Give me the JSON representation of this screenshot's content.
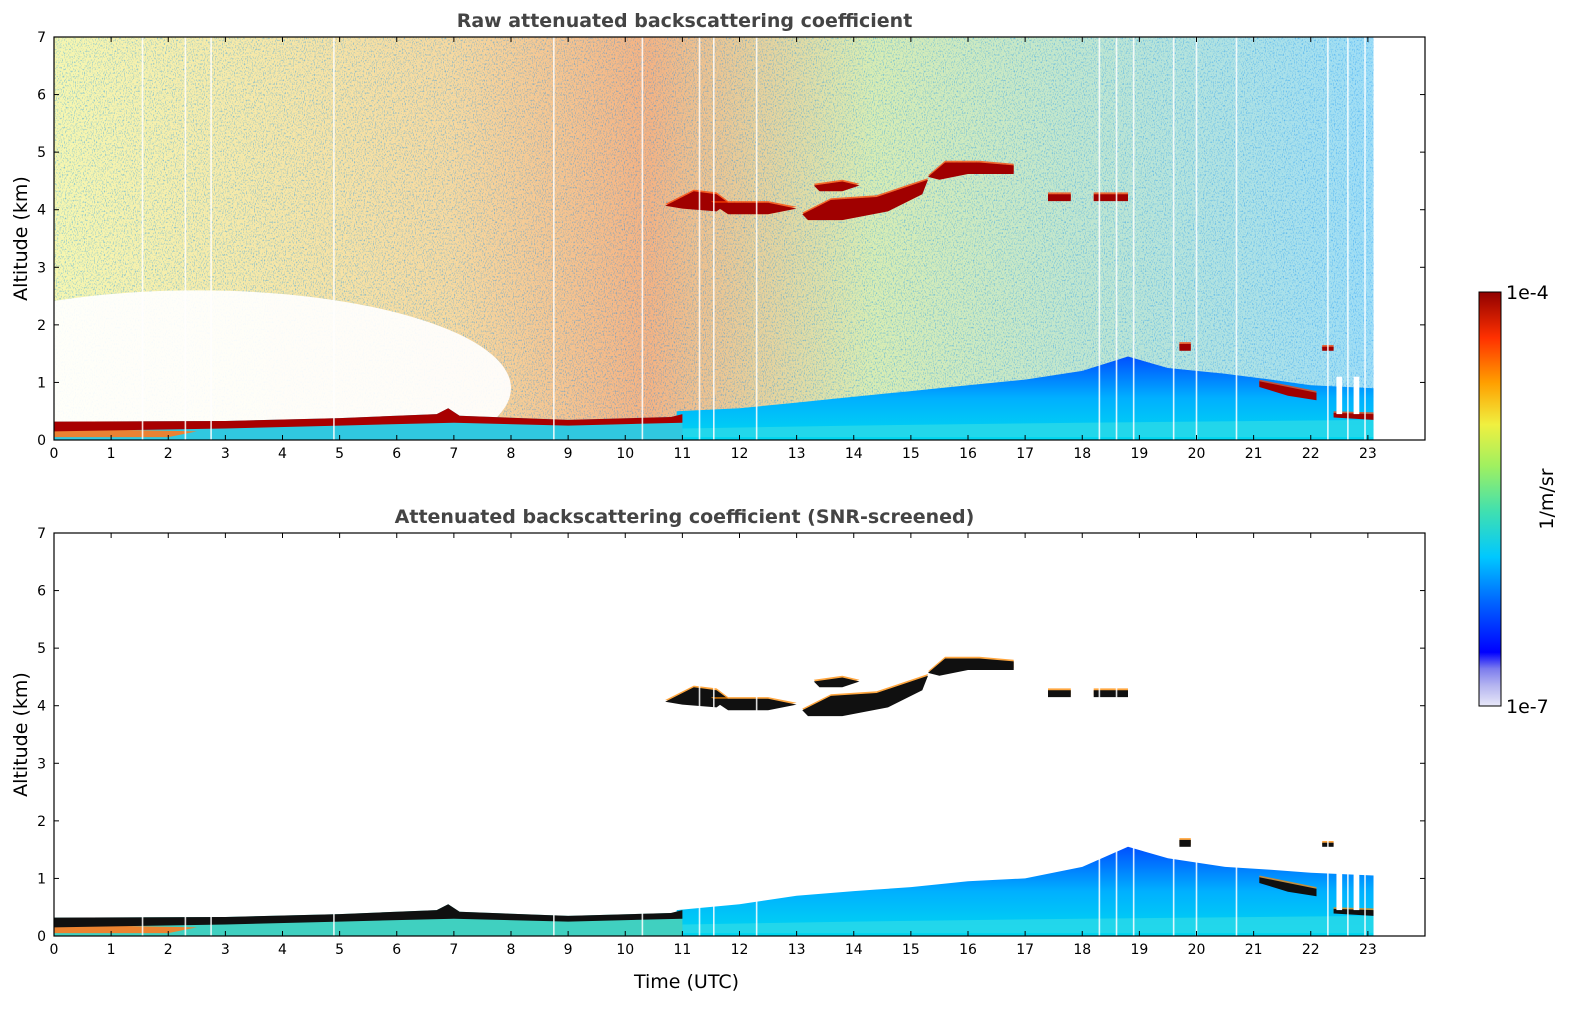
{
  "chart_data": [
    {
      "type": "heatmap",
      "title": "Raw attenuated backscattering coefficient",
      "xlabel": "",
      "ylabel": "Altitude (km)",
      "xlim": [
        0,
        24
      ],
      "ylim": [
        0,
        7
      ],
      "x_ticks": [
        "0",
        "1",
        "2",
        "3",
        "4",
        "5",
        "6",
        "7",
        "8",
        "9",
        "10",
        "11",
        "12",
        "13",
        "14",
        "15",
        "16",
        "17",
        "18",
        "19",
        "20",
        "21",
        "22",
        "23"
      ],
      "y_ticks": [
        "0",
        "1",
        "2",
        "3",
        "4",
        "5",
        "6",
        "7"
      ],
      "data_end_time": 23.1,
      "layers": [
        {
          "feature": "surface aerosol layer",
          "t_start": 0,
          "t_end": 11,
          "altitude_km": [
            0.25,
            0.45
          ],
          "level": "1e-4"
        },
        {
          "feature": "cloud",
          "t_start": 10.7,
          "t_end": 15.3,
          "altitude_km": [
            3.9,
            4.5
          ],
          "level": "1e-4"
        },
        {
          "feature": "cloud",
          "t_start": 15.3,
          "t_end": 16.8,
          "altitude_km": [
            4.6,
            4.85
          ],
          "level": "1e-4"
        },
        {
          "feature": "boundary layer",
          "t_start": 11,
          "t_end": 23.1,
          "altitude_km": [
            0,
            1.5
          ],
          "level": "1e-6"
        },
        {
          "feature": "cloud",
          "t_start": 21.1,
          "t_end": 22.1,
          "altitude_km": [
            0.75,
            1.1
          ],
          "level": "1e-4"
        }
      ]
    },
    {
      "type": "heatmap",
      "title": "Attenuated backscattering coefficient (SNR-screened)",
      "xlabel": "Time (UTC)",
      "ylabel": "Altitude (km)",
      "xlim": [
        0,
        24
      ],
      "ylim": [
        0,
        7
      ],
      "x_ticks": [
        "0",
        "1",
        "2",
        "3",
        "4",
        "5",
        "6",
        "7",
        "8",
        "9",
        "10",
        "11",
        "12",
        "13",
        "14",
        "15",
        "16",
        "17",
        "18",
        "19",
        "20",
        "21",
        "22",
        "23"
      ],
      "y_ticks": [
        "0",
        "1",
        "2",
        "3",
        "4",
        "5",
        "6",
        "7"
      ],
      "data_end_time": 23.1
    }
  ],
  "colorbar": {
    "label": "1/m/sr",
    "max_label": "1e-4",
    "min_label": "1e-7",
    "scale": "log",
    "colormap": "jet",
    "colors": [
      "#e8e8f8",
      "#b4b4f0",
      "#7c7cee",
      "#0000ff",
      "#0064ff",
      "#00c8ff",
      "#40e0b0",
      "#a0f060",
      "#f0f040",
      "#ffa000",
      "#ff3000",
      "#900000"
    ]
  }
}
